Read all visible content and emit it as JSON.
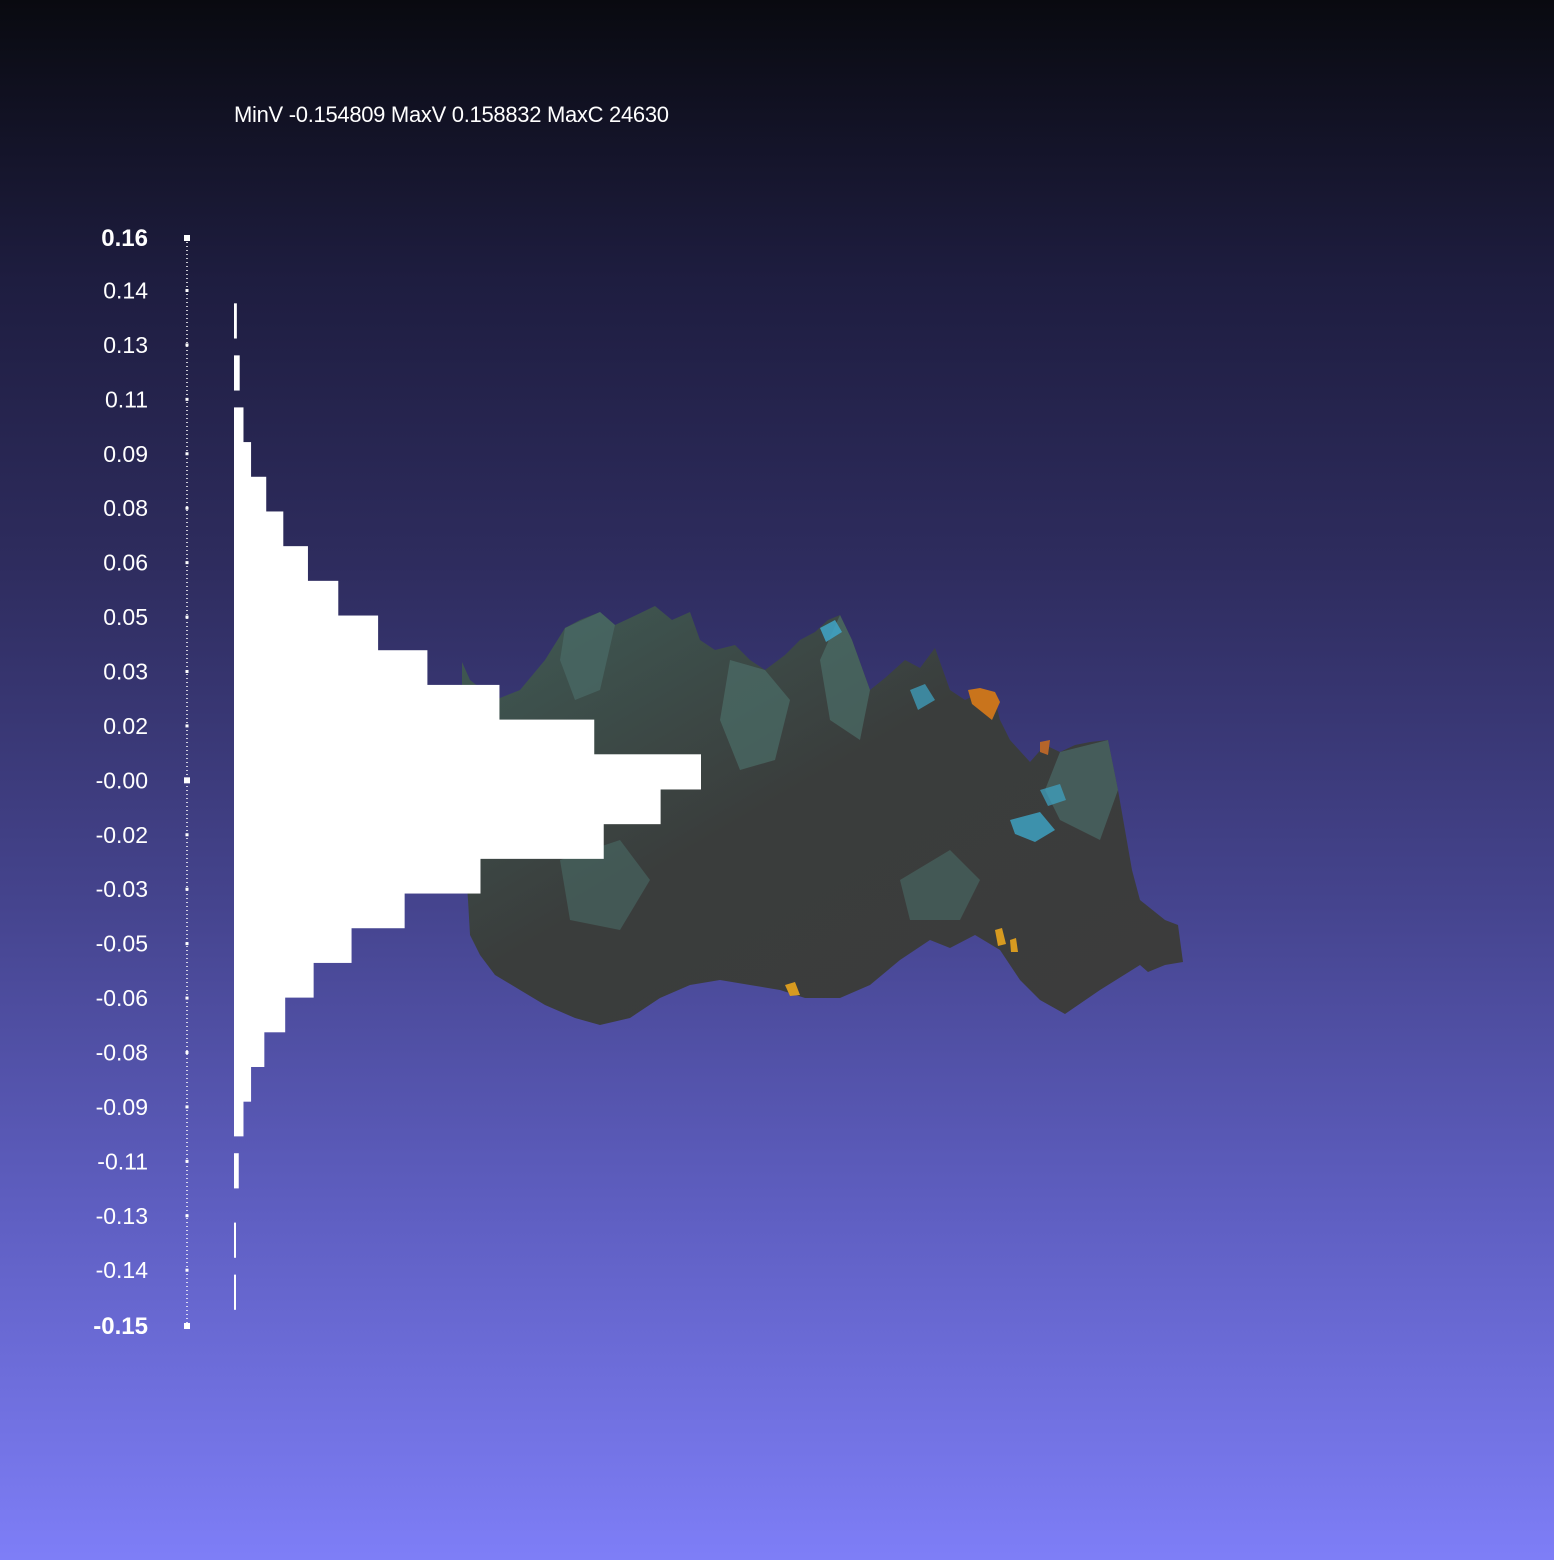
{
  "viewer": {
    "stats_text": "MinV -0.154809 MaxV 0.158832 MaxC 24630"
  },
  "colorbar": {
    "ticks": [
      "0.16",
      "0.14",
      "0.13",
      "0.11",
      "0.09",
      "0.08",
      "0.06",
      "0.05",
      "0.03",
      "0.02",
      "-0.00",
      "-0.02",
      "-0.03",
      "-0.05",
      "-0.06",
      "-0.08",
      "-0.09",
      "-0.11",
      "-0.13",
      "-0.14",
      "-0.15"
    ],
    "bold_ticks": [
      "0.16",
      "-0.15"
    ],
    "marker_ticks": [
      "-0.00"
    ]
  },
  "chart_data": {
    "type": "bar",
    "orientation": "horizontal",
    "title": "",
    "xlabel": "",
    "ylabel": "",
    "ylim": [
      -0.154809,
      0.158832
    ],
    "value_range": {
      "min": -0.154809,
      "max": 0.158832
    },
    "max_count": 24630,
    "bar_color": "#ffffff",
    "bins": [
      {
        "v": 0.135,
        "c": 150
      },
      {
        "v": 0.12,
        "c": 300
      },
      {
        "v": 0.105,
        "c": 500
      },
      {
        "v": 0.095,
        "c": 900
      },
      {
        "v": 0.085,
        "c": 1700
      },
      {
        "v": 0.075,
        "c": 2600
      },
      {
        "v": 0.065,
        "c": 3900
      },
      {
        "v": 0.055,
        "c": 5500
      },
      {
        "v": 0.045,
        "c": 7600
      },
      {
        "v": 0.035,
        "c": 10200
      },
      {
        "v": 0.025,
        "c": 14000
      },
      {
        "v": 0.015,
        "c": 19000
      },
      {
        "v": 0.005,
        "c": 24630
      },
      {
        "v": -0.005,
        "c": 22500
      },
      {
        "v": -0.015,
        "c": 19500
      },
      {
        "v": -0.025,
        "c": 13000
      },
      {
        "v": -0.035,
        "c": 9000
      },
      {
        "v": -0.045,
        "c": 6200
      },
      {
        "v": -0.055,
        "c": 4200
      },
      {
        "v": -0.065,
        "c": 2700
      },
      {
        "v": -0.075,
        "c": 1600
      },
      {
        "v": -0.085,
        "c": 900
      },
      {
        "v": -0.095,
        "c": 500
      },
      {
        "v": -0.11,
        "c": 250
      },
      {
        "v": -0.13,
        "c": 100
      },
      {
        "v": -0.145,
        "c": 50
      }
    ]
  }
}
